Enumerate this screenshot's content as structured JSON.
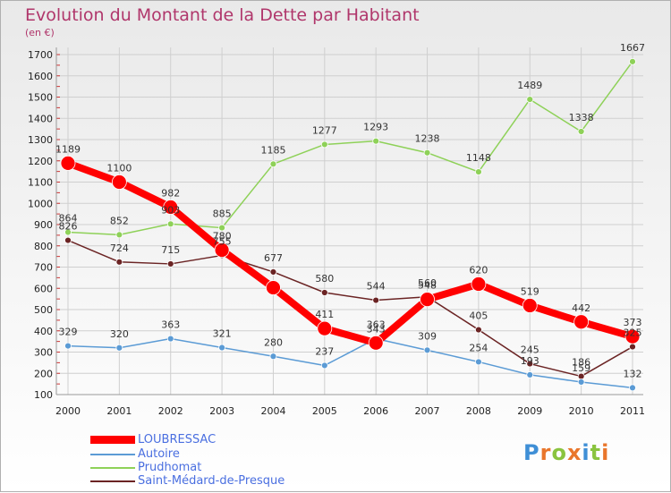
{
  "title": "Evolution du Montant de la Dette par Habitant",
  "unit": "(en €)",
  "logo": "Proxiti",
  "colors": {
    "LOUBRESSAC": "#ff0000",
    "Autoire": "#5b9bd5",
    "Prudhomat": "#8ed158",
    "Saint-Médard-de-Presque": "#6b2424"
  },
  "chart_data": {
    "type": "line",
    "title": "Evolution du Montant de la Dette par Habitant",
    "subtitle": "(en €)",
    "xlabel": "",
    "ylabel": "",
    "ylim": [
      100,
      1700
    ],
    "yticks": [
      100,
      200,
      300,
      400,
      500,
      600,
      700,
      800,
      900,
      1000,
      1100,
      1200,
      1300,
      1400,
      1500,
      1600,
      1700
    ],
    "x": [
      "2000",
      "2001",
      "2002",
      "2003",
      "2004",
      "2005",
      "2006",
      "2007",
      "2008",
      "2009",
      "2010",
      "2011"
    ],
    "grid": true,
    "legend": "bottom-left",
    "series": [
      {
        "name": "LOUBRESSAC",
        "values": [
          1189,
          1100,
          982,
          780,
          603,
          411,
          343,
          548,
          620,
          519,
          442,
          373
        ],
        "labels": [
          "1189",
          "1100",
          "982",
          "780",
          "",
          "411",
          "343",
          "548",
          "620",
          "519",
          "442",
          "373"
        ]
      },
      {
        "name": "Autoire",
        "values": [
          329,
          320,
          363,
          321,
          280,
          237,
          363,
          309,
          254,
          193,
          159,
          132
        ],
        "labels": [
          "329",
          "320",
          "363",
          "321",
          "280",
          "237",
          "363",
          "309",
          "254",
          "193",
          "159",
          "132"
        ]
      },
      {
        "name": "Prudhomat",
        "values": [
          864,
          852,
          903,
          885,
          1185,
          1277,
          1293,
          1238,
          1148,
          1489,
          1338,
          1667
        ],
        "labels": [
          "864",
          "852",
          "903",
          "885",
          "1185",
          "1277",
          "1293",
          "1238",
          "1148",
          "1489",
          "1338",
          "1667"
        ]
      },
      {
        "name": "Saint-Médard-de-Presque",
        "values": [
          826,
          724,
          715,
          755,
          677,
          580,
          544,
          560,
          405,
          245,
          186,
          325
        ],
        "labels": [
          "826",
          "724",
          "715",
          "755",
          "677",
          "580",
          "544",
          "560",
          "405",
          "245",
          "186",
          "325"
        ]
      }
    ]
  },
  "legend_items": [
    "LOUBRESSAC",
    "Autoire",
    "Prudhomat",
    "Saint-Médard-de-Presque"
  ]
}
